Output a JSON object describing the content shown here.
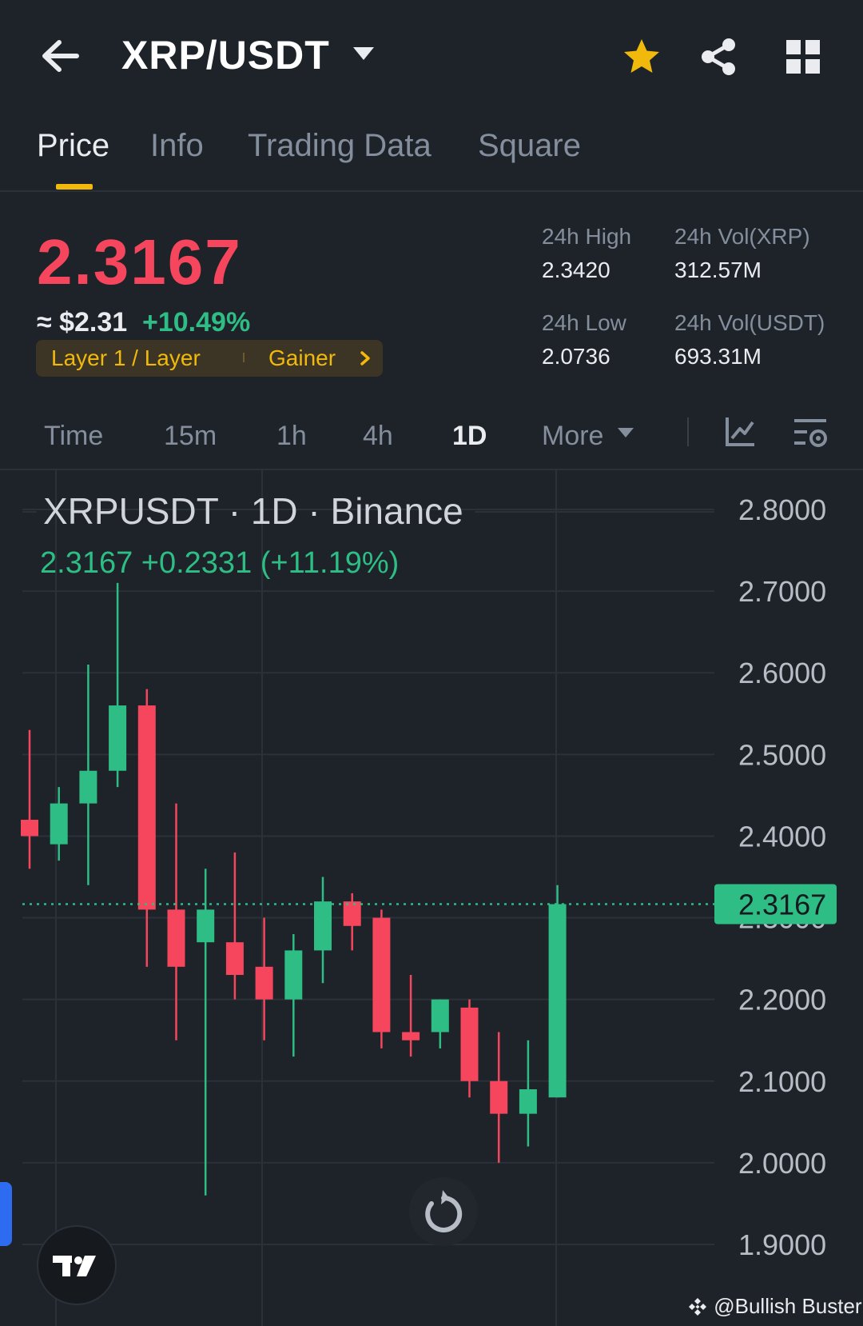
{
  "header": {
    "pair": "XRP/USDT",
    "icons": [
      "back-arrow-icon",
      "chevron-down-icon",
      "star-icon",
      "share-icon",
      "grid-menu-icon"
    ],
    "star_color": "#f0b90b"
  },
  "tabs": [
    {
      "label": "Price",
      "active": true
    },
    {
      "label": "Info",
      "active": false
    },
    {
      "label": "Trading Data",
      "active": false
    },
    {
      "label": "Square",
      "active": false
    }
  ],
  "price": {
    "last": "2.3167",
    "usd": "≈ $2.31",
    "change_pct": "+10.49%",
    "tag_category": "Layer 1 / Layer",
    "tag_gainer": "Gainer"
  },
  "stats": {
    "high_label": "24h High",
    "high_value": "2.3420",
    "low_label": "24h Low",
    "low_value": "2.0736",
    "vol_base_label": "24h Vol(XRP)",
    "vol_base_value": "312.57M",
    "vol_quote_label": "24h Vol(USDT)",
    "vol_quote_value": "693.31M"
  },
  "intervals": [
    {
      "label": "Time",
      "active": false
    },
    {
      "label": "15m",
      "active": false
    },
    {
      "label": "1h",
      "active": false
    },
    {
      "label": "4h",
      "active": false
    },
    {
      "label": "1D",
      "active": true
    },
    {
      "label": "More",
      "active": false
    }
  ],
  "chart_header": {
    "title": "XRPUSDT · 1D · Binance",
    "change": "2.3167  +0.2331 (+11.19%)"
  },
  "chart_data": {
    "type": "candlestick",
    "y_ticks": [
      "2.8000",
      "2.7000",
      "2.6000",
      "2.5000",
      "2.4000",
      "2.3000",
      "2.2000",
      "2.1000",
      "2.0000",
      "1.9000"
    ],
    "ylim": [
      1.9,
      2.8
    ],
    "last_price_label": "2.3167",
    "last_price": 2.3167,
    "colors": {
      "up": "#2ebd85",
      "down": "#f6465d"
    },
    "candles": [
      {
        "o": 2.42,
        "h": 2.53,
        "l": 2.36,
        "c": 2.4
      },
      {
        "o": 2.39,
        "h": 2.46,
        "l": 2.37,
        "c": 2.44
      },
      {
        "o": 2.44,
        "h": 2.61,
        "l": 2.34,
        "c": 2.48
      },
      {
        "o": 2.48,
        "h": 2.71,
        "l": 2.46,
        "c": 2.56
      },
      {
        "o": 2.56,
        "h": 2.58,
        "l": 2.24,
        "c": 2.31
      },
      {
        "o": 2.31,
        "h": 2.44,
        "l": 2.15,
        "c": 2.24
      },
      {
        "o": 2.27,
        "h": 2.36,
        "l": 1.96,
        "c": 2.31
      },
      {
        "o": 2.27,
        "h": 2.38,
        "l": 2.2,
        "c": 2.23
      },
      {
        "o": 2.24,
        "h": 2.3,
        "l": 2.15,
        "c": 2.2
      },
      {
        "o": 2.2,
        "h": 2.28,
        "l": 2.13,
        "c": 2.26
      },
      {
        "o": 2.26,
        "h": 2.35,
        "l": 2.22,
        "c": 2.32
      },
      {
        "o": 2.32,
        "h": 2.33,
        "l": 2.26,
        "c": 2.29
      },
      {
        "o": 2.3,
        "h": 2.31,
        "l": 2.14,
        "c": 2.16
      },
      {
        "o": 2.16,
        "h": 2.23,
        "l": 2.13,
        "c": 2.15
      },
      {
        "o": 2.16,
        "h": 2.2,
        "l": 2.14,
        "c": 2.2
      },
      {
        "o": 2.19,
        "h": 2.2,
        "l": 2.08,
        "c": 2.1
      },
      {
        "o": 2.1,
        "h": 2.16,
        "l": 2.0,
        "c": 2.06
      },
      {
        "o": 2.06,
        "h": 2.15,
        "l": 2.02,
        "c": 2.09
      },
      {
        "o": 2.08,
        "h": 2.34,
        "l": 2.08,
        "c": 2.3167
      }
    ]
  },
  "watermark": "@Bullish Buster"
}
